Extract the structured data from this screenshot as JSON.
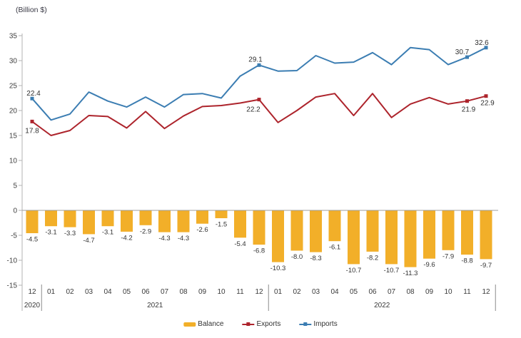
{
  "chart_data": {
    "type": "combo-bar-line",
    "unit_label": "(Billion $)",
    "months": [
      "12",
      "01",
      "02",
      "03",
      "04",
      "05",
      "06",
      "07",
      "08",
      "09",
      "10",
      "11",
      "12",
      "01",
      "02",
      "03",
      "04",
      "05",
      "06",
      "07",
      "08",
      "09",
      "10",
      "11",
      "12"
    ],
    "year_groups": [
      {
        "label": "2020",
        "start": 0,
        "end": 0
      },
      {
        "label": "2021",
        "start": 1,
        "end": 12
      },
      {
        "label": "2022",
        "start": 13,
        "end": 24
      }
    ],
    "ylim": [
      -15,
      35
    ],
    "ytick_step": 5,
    "grid": false,
    "legend_position": "bottom-center",
    "series": [
      {
        "name": "Balance",
        "type": "bar",
        "color": "#F2AF29",
        "values": [
          -4.5,
          -3.1,
          -3.3,
          -4.7,
          -3.1,
          -4.2,
          -2.9,
          -4.3,
          -4.3,
          -2.6,
          -1.5,
          -5.4,
          -6.8,
          -10.3,
          -8.0,
          -8.3,
          -6.1,
          -10.7,
          -8.2,
          -10.7,
          -11.3,
          -9.6,
          -7.9,
          -8.8,
          -9.7
        ],
        "value_labels": "all"
      },
      {
        "name": "Exports",
        "type": "line",
        "color": "#AD242C",
        "values": [
          17.8,
          15.0,
          16.0,
          19.0,
          18.8,
          16.5,
          19.8,
          16.4,
          18.9,
          20.8,
          21.0,
          21.5,
          22.2,
          17.6,
          20.0,
          22.7,
          23.4,
          19.0,
          23.4,
          18.6,
          21.3,
          22.6,
          21.3,
          21.9,
          22.9
        ],
        "labeled_indices": [
          0,
          12,
          23,
          24
        ],
        "labeled_values": [
          "17.8",
          "22.2",
          "21.9",
          "22.9"
        ]
      },
      {
        "name": "Imports",
        "type": "line",
        "color": "#3B7DB2",
        "values": [
          22.4,
          18.1,
          19.3,
          23.7,
          21.9,
          20.7,
          22.7,
          20.7,
          23.2,
          23.4,
          22.5,
          26.9,
          29.1,
          27.9,
          28.0,
          31.0,
          29.5,
          29.7,
          31.6,
          29.2,
          32.6,
          32.2,
          29.2,
          30.7,
          32.6
        ],
        "labeled_indices": [
          0,
          12,
          23,
          24
        ],
        "labeled_values": [
          "22.4",
          "29.1",
          "30.7",
          "32.6"
        ]
      }
    ]
  }
}
